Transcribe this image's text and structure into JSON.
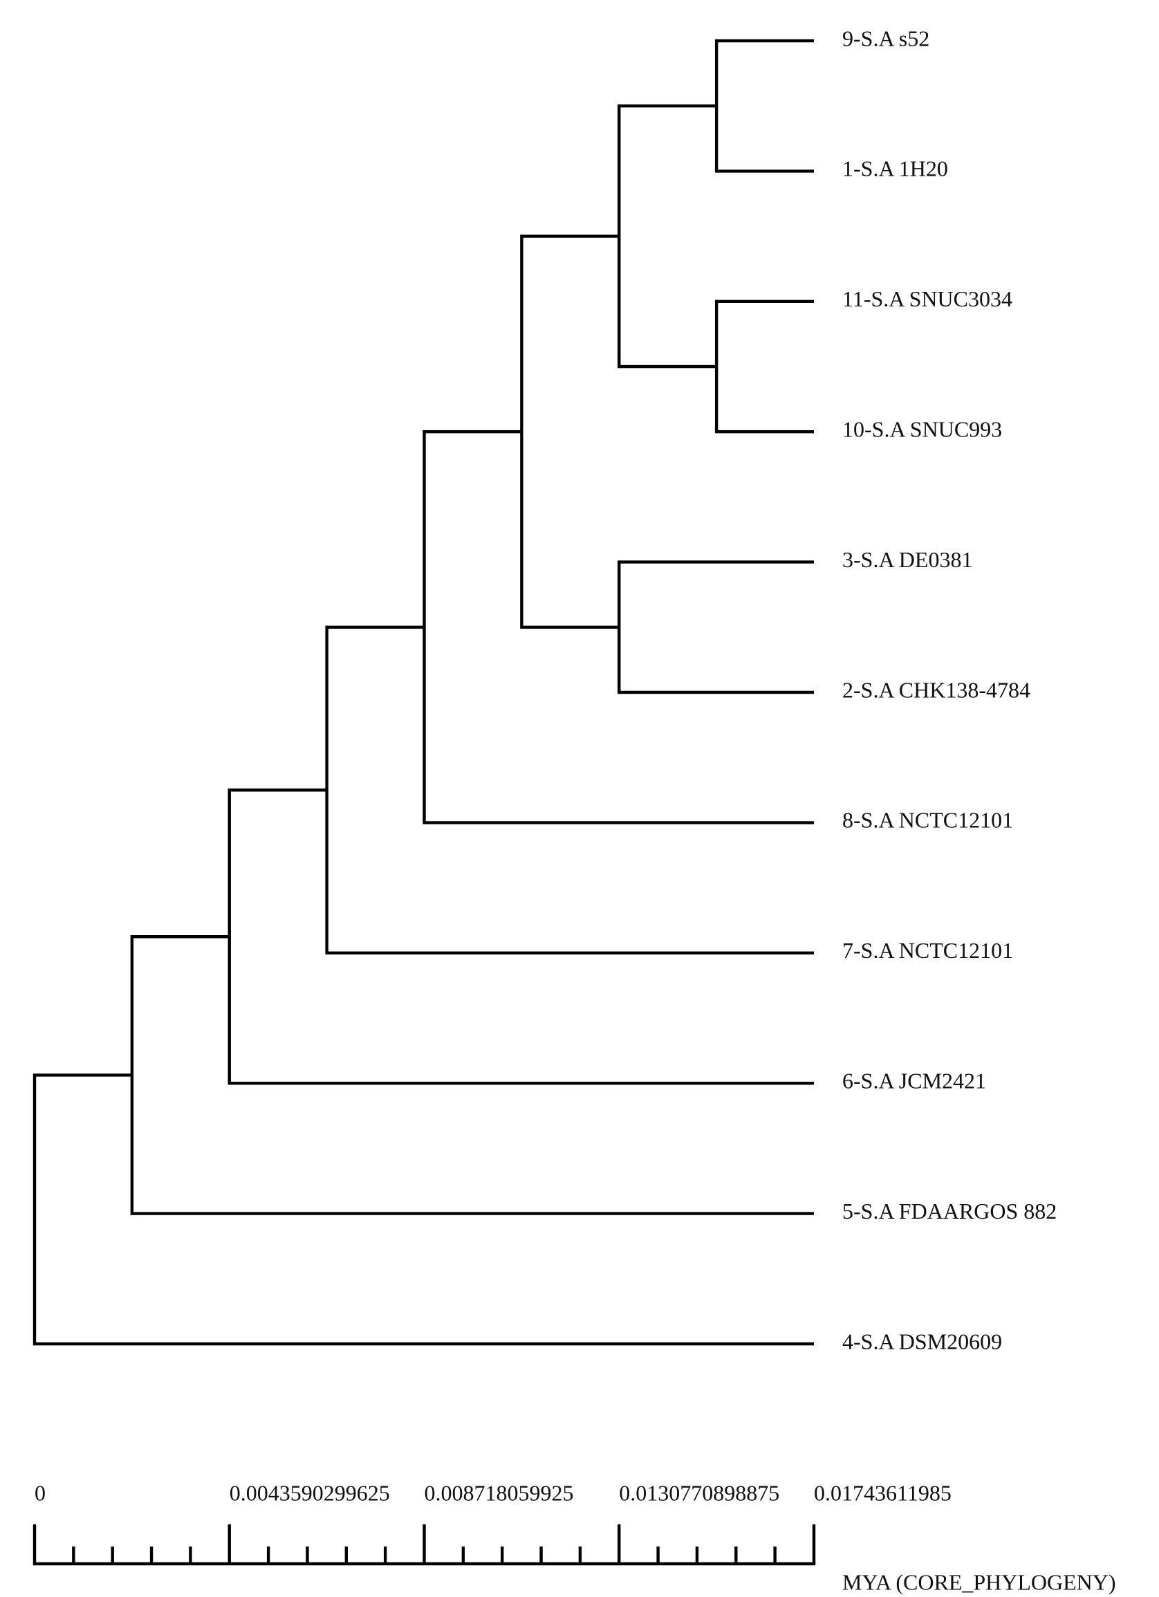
{
  "chart_data": {
    "type": "dendrogram",
    "xlabel": "MYA (CORE_PHYLOGENY)",
    "xlim": [
      0,
      0.01743611985
    ],
    "xticks": [
      0,
      0.0043590299625,
      0.008718059925,
      0.0130770898875,
      0.01743611985
    ],
    "minor_xticks": [
      0.000871806,
      0.001743612,
      0.002615418,
      0.003487224,
      0.005230836,
      0.006102642,
      0.006974448,
      0.007846254,
      0.009589866,
      0.010461672,
      0.011333478,
      0.012205284,
      0.013948896,
      0.014820702,
      0.015692508,
      0.016564314
    ],
    "color": "#000000",
    "tree": {
      "x": 0,
      "children": [
        {
          "x": 0.0021795149813,
          "children": [
            {
              "x": 0.0043590299625,
              "children": [
                {
                  "x": 0.0065385449438,
                  "children": [
                    {
                      "x": 0.008718059925,
                      "children": [
                        {
                          "x": 0.0108975749063,
                          "children": [
                            {
                              "x": 0.0130770898875,
                              "children": [
                                {
                                  "x": 0.0152566048688,
                                  "children": [
                                    {
                                      "label": "9-S.A s52"
                                    },
                                    {
                                      "label": "1-S.A 1H20"
                                    }
                                  ]
                                },
                                {
                                  "x": 0.0152566048688,
                                  "children": [
                                    {
                                      "label": "11-S.A SNUC3034"
                                    },
                                    {
                                      "label": "10-S.A SNUC993"
                                    }
                                  ]
                                }
                              ]
                            },
                            {
                              "x": 0.0130770898875,
                              "children": [
                                {
                                  "label": "3-S.A DE0381"
                                },
                                {
                                  "label": "2-S.A CHK138-4784"
                                }
                              ]
                            }
                          ]
                        },
                        {
                          "label": "8-S.A NCTC12101"
                        }
                      ]
                    },
                    {
                      "label": "7-S.A NCTC12101"
                    }
                  ]
                },
                {
                  "label": "6-S.A JCM2421"
                }
              ]
            },
            {
              "label": "5-S.A FDAARGOS 882"
            }
          ]
        },
        {
          "label": "4-S.A DSM20609"
        }
      ]
    }
  }
}
